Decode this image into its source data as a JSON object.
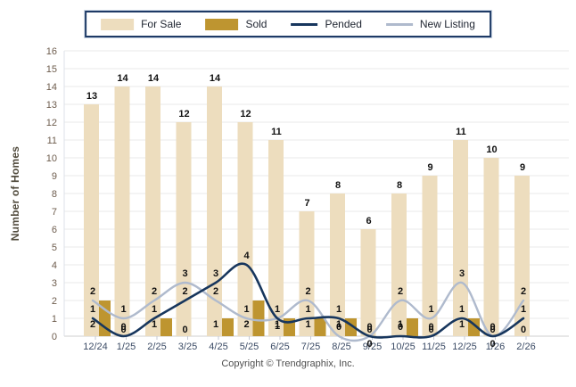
{
  "legend": {
    "items": [
      {
        "label": "For Sale",
        "swatch": "bar",
        "color": "#EDDDBE"
      },
      {
        "label": "Sold",
        "swatch": "bar",
        "color": "#BE9530"
      },
      {
        "label": "Pended",
        "swatch": "line",
        "color": "#17365D"
      },
      {
        "label": "New Listing",
        "swatch": "line",
        "color": "#AFBACD"
      }
    ]
  },
  "chart_data": {
    "type": "bar",
    "title": "",
    "xlabel": "",
    "ylabel": "Number of Homes",
    "ylim": [
      0,
      16
    ],
    "ytick_step": 1,
    "grid": true,
    "legend_position": "top",
    "categories": [
      "12/24",
      "1/25",
      "2/25",
      "3/25",
      "4/25",
      "5/25",
      "6/25",
      "7/25",
      "8/25",
      "9/25",
      "10/25",
      "11/25",
      "12/25",
      "1/26",
      "2/26"
    ],
    "series": [
      {
        "name": "For Sale",
        "type": "bar",
        "color": "#EDDDBE",
        "values": [
          13,
          14,
          14,
          12,
          14,
          12,
          11,
          7,
          8,
          6,
          8,
          9,
          11,
          10,
          9
        ]
      },
      {
        "name": "Sold",
        "type": "bar",
        "color": "#BE9530",
        "values": [
          2,
          0,
          1,
          0,
          1,
          2,
          1,
          1,
          1,
          0,
          1,
          0,
          1,
          0,
          0
        ]
      },
      {
        "name": "Pended",
        "type": "line",
        "color": "#17365D",
        "values": [
          1,
          0,
          1,
          2,
          3,
          4,
          1,
          1,
          1,
          0,
          0,
          0,
          1,
          0,
          1
        ]
      },
      {
        "name": "New Listing",
        "type": "line",
        "color": "#AFBACD",
        "values": [
          2,
          1,
          2,
          3,
          2,
          1,
          1,
          2,
          0,
          0,
          2,
          1,
          3,
          0,
          2
        ]
      }
    ]
  },
  "colors": {
    "grid": "#E8E8E8",
    "baseline": "#CFCFCF",
    "axis_line": "#DCE2EA",
    "tick": "#C5C9D4",
    "y_tick_text": "#6D5C4D",
    "x_tick_text": "#3C4C66",
    "value_text": "#111111"
  },
  "footer": {
    "copyright": "Copyright © Trendgraphix, Inc."
  }
}
